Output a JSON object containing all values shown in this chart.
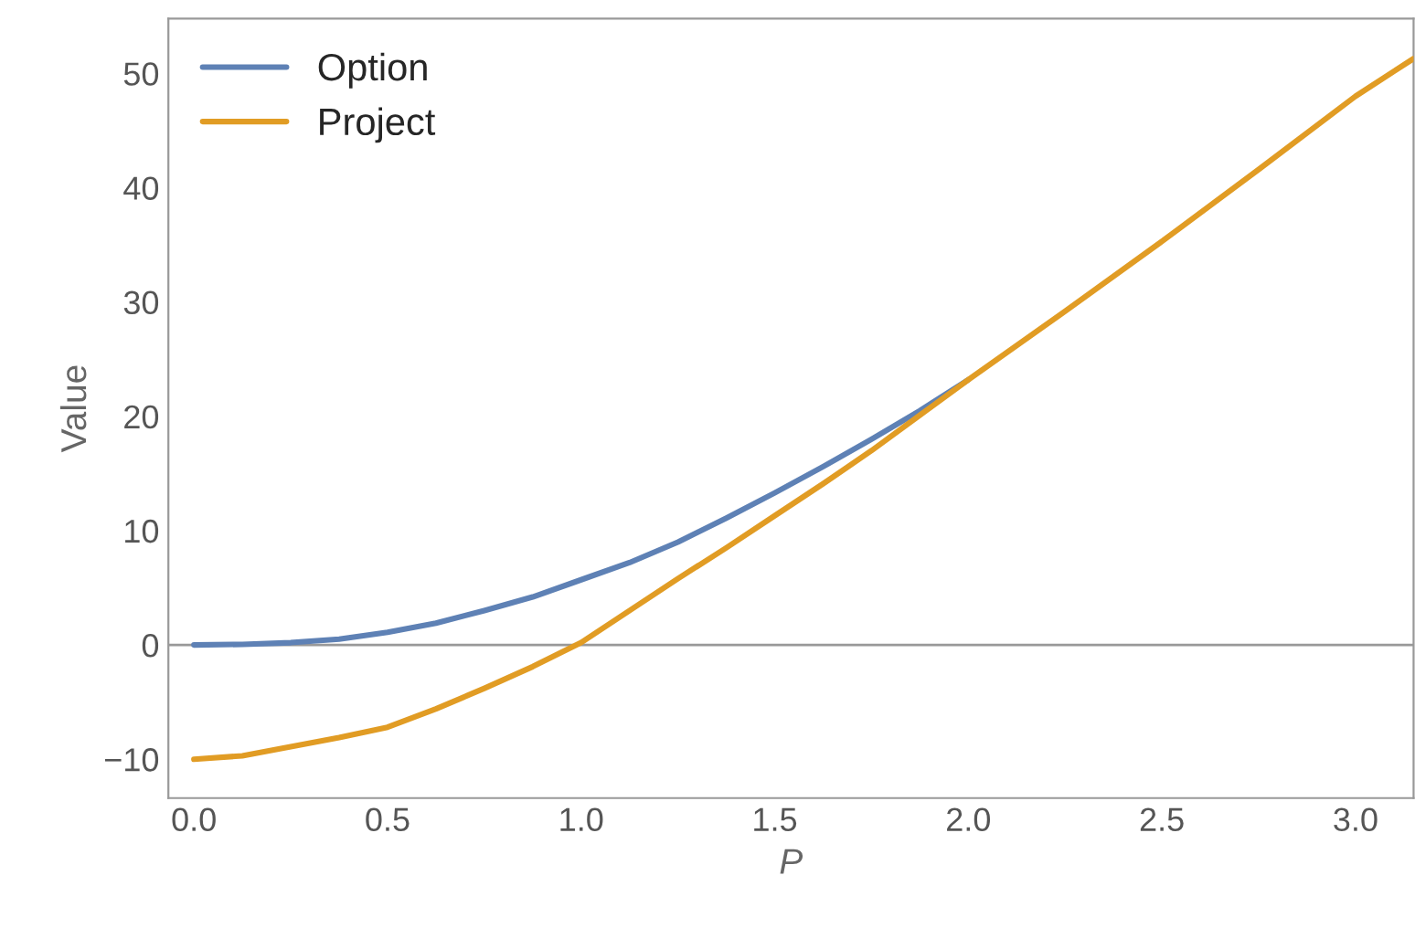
{
  "chart_data": {
    "type": "line",
    "xlabel": "P",
    "ylabel": "Value",
    "xlim": [
      -0.066,
      3.15
    ],
    "ylim": [
      -13.4,
      54.8
    ],
    "xticks": [
      {
        "value": 0,
        "label": "0.0"
      },
      {
        "value": 0.5,
        "label": "0.5"
      },
      {
        "value": 1,
        "label": "1.0"
      },
      {
        "value": 1.5,
        "label": "1.5"
      },
      {
        "value": 2,
        "label": "2.0"
      },
      {
        "value": 2.5,
        "label": "2.5"
      },
      {
        "value": 3,
        "label": "3.0"
      }
    ],
    "yticks": [
      {
        "value": -10,
        "label": "−10"
      },
      0,
      10,
      20,
      30,
      40,
      50
    ],
    "series": [
      {
        "name": "Option",
        "color": "#5e81b5",
        "x": [
          0,
          0.125,
          0.25,
          0.375,
          0.5,
          0.625,
          0.75,
          0.875,
          1.0,
          1.125,
          1.25,
          1.375,
          1.5,
          1.625,
          1.75,
          1.875,
          2.0
        ],
        "values": [
          0,
          0.05,
          0.2,
          0.5,
          1.1,
          1.9,
          3.0,
          4.2,
          5.7,
          7.2,
          9.0,
          11.1,
          13.3,
          15.6,
          18.0,
          20.5,
          23.2
        ]
      },
      {
        "name": "Project",
        "color": "#e19c24",
        "x": [
          0,
          0.125,
          0.25,
          0.375,
          0.5,
          0.625,
          0.75,
          0.875,
          1.0,
          1.125,
          1.25,
          1.375,
          1.5,
          1.625,
          1.75,
          1.875,
          2.0,
          2.25,
          2.5,
          2.75,
          3.0,
          3.15
        ],
        "values": [
          -10,
          -9.7,
          -8.9,
          -8.1,
          -7.2,
          -5.6,
          -3.8,
          -1.9,
          0.2,
          3.0,
          5.8,
          8.5,
          11.3,
          14.1,
          17.0,
          20.1,
          23.2,
          29.2,
          35.3,
          41.6,
          48,
          51.3
        ]
      }
    ],
    "ref_lines": [
      {
        "axis": "y",
        "value": 0,
        "color": "#999999"
      }
    ],
    "legend": "top left",
    "grid": false
  }
}
